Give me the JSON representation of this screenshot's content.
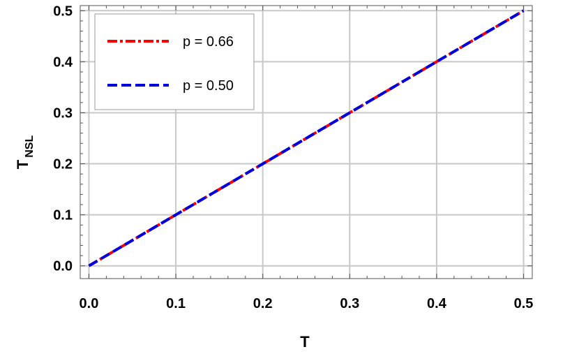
{
  "chart_data": {
    "type": "line",
    "xlabel": "T",
    "ylabel": "T",
    "ylabel_sub": "NSL",
    "xlim": [
      -0.01,
      0.51
    ],
    "ylim": [
      -0.025,
      0.51
    ],
    "x_ticks": [
      "0.0",
      "0.1",
      "0.2",
      "0.3",
      "0.4",
      "0.5"
    ],
    "y_ticks": [
      "0.0",
      "0.1",
      "0.2",
      "0.3",
      "0.4",
      "0.5"
    ],
    "grid": true,
    "legend_position": "top-left",
    "series": [
      {
        "name": "p = 0.66",
        "color": "#ff0000",
        "style": "dash-dot",
        "x": [
          0.0,
          0.1,
          0.2,
          0.3,
          0.4,
          0.5
        ],
        "y": [
          0.0,
          0.1,
          0.2,
          0.3,
          0.4,
          0.5
        ]
      },
      {
        "name": "p = 0.50",
        "color": "#0000dd",
        "style": "dashed",
        "x": [
          0.0,
          0.1,
          0.2,
          0.3,
          0.4,
          0.5
        ],
        "y": [
          0.0,
          0.1,
          0.2,
          0.3,
          0.4,
          0.5
        ]
      }
    ]
  }
}
